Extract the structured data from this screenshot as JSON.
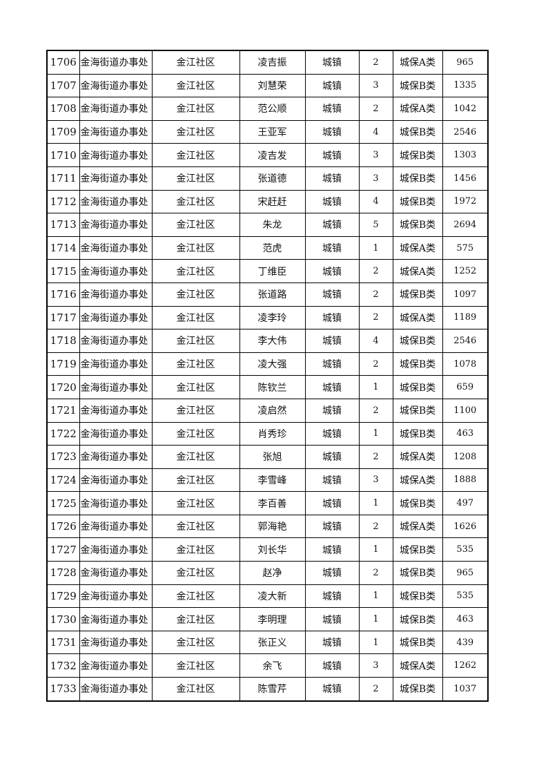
{
  "table": {
    "rows": [
      [
        "1706",
        "金海街道办事处",
        "金江社区",
        "凌吉振",
        "城镇",
        "2",
        "城保A类",
        "965"
      ],
      [
        "1707",
        "金海街道办事处",
        "金江社区",
        "刘慧荣",
        "城镇",
        "3",
        "城保B类",
        "1335"
      ],
      [
        "1708",
        "金海街道办事处",
        "金江社区",
        "范公顺",
        "城镇",
        "2",
        "城保A类",
        "1042"
      ],
      [
        "1709",
        "金海街道办事处",
        "金江社区",
        "王亚军",
        "城镇",
        "4",
        "城保B类",
        "2546"
      ],
      [
        "1710",
        "金海街道办事处",
        "金江社区",
        "凌吉发",
        "城镇",
        "3",
        "城保B类",
        "1303"
      ],
      [
        "1711",
        "金海街道办事处",
        "金江社区",
        "张道德",
        "城镇",
        "3",
        "城保B类",
        "1456"
      ],
      [
        "1712",
        "金海街道办事处",
        "金江社区",
        "宋赶赶",
        "城镇",
        "4",
        "城保B类",
        "1972"
      ],
      [
        "1713",
        "金海街道办事处",
        "金江社区",
        "朱龙",
        "城镇",
        "5",
        "城保B类",
        "2694"
      ],
      [
        "1714",
        "金海街道办事处",
        "金江社区",
        "范虎",
        "城镇",
        "1",
        "城保A类",
        "575"
      ],
      [
        "1715",
        "金海街道办事处",
        "金江社区",
        "丁维臣",
        "城镇",
        "2",
        "城保A类",
        "1252"
      ],
      [
        "1716",
        "金海街道办事处",
        "金江社区",
        "张道路",
        "城镇",
        "2",
        "城保B类",
        "1097"
      ],
      [
        "1717",
        "金海街道办事处",
        "金江社区",
        "凌李玲",
        "城镇",
        "2",
        "城保A类",
        "1189"
      ],
      [
        "1718",
        "金海街道办事处",
        "金江社区",
        "李大伟",
        "城镇",
        "4",
        "城保B类",
        "2546"
      ],
      [
        "1719",
        "金海街道办事处",
        "金江社区",
        "凌大强",
        "城镇",
        "2",
        "城保B类",
        "1078"
      ],
      [
        "1720",
        "金海街道办事处",
        "金江社区",
        "陈钦兰",
        "城镇",
        "1",
        "城保B类",
        "659"
      ],
      [
        "1721",
        "金海街道办事处",
        "金江社区",
        "凌启然",
        "城镇",
        "2",
        "城保B类",
        "1100"
      ],
      [
        "1722",
        "金海街道办事处",
        "金江社区",
        "肖秀珍",
        "城镇",
        "1",
        "城保B类",
        "463"
      ],
      [
        "1723",
        "金海街道办事处",
        "金江社区",
        "张旭",
        "城镇",
        "2",
        "城保A类",
        "1208"
      ],
      [
        "1724",
        "金海街道办事处",
        "金江社区",
        "李雪峰",
        "城镇",
        "3",
        "城保A类",
        "1888"
      ],
      [
        "1725",
        "金海街道办事处",
        "金江社区",
        "李百善",
        "城镇",
        "1",
        "城保B类",
        "497"
      ],
      [
        "1726",
        "金海街道办事处",
        "金江社区",
        "郭海艳",
        "城镇",
        "2",
        "城保A类",
        "1626"
      ],
      [
        "1727",
        "金海街道办事处",
        "金江社区",
        "刘长华",
        "城镇",
        "1",
        "城保B类",
        "535"
      ],
      [
        "1728",
        "金海街道办事处",
        "金江社区",
        "赵净",
        "城镇",
        "2",
        "城保B类",
        "965"
      ],
      [
        "1729",
        "金海街道办事处",
        "金江社区",
        "凌大新",
        "城镇",
        "1",
        "城保B类",
        "535"
      ],
      [
        "1730",
        "金海街道办事处",
        "金江社区",
        "李明理",
        "城镇",
        "1",
        "城保B类",
        "463"
      ],
      [
        "1731",
        "金海街道办事处",
        "金江社区",
        "张正义",
        "城镇",
        "1",
        "城保B类",
        "439"
      ],
      [
        "1732",
        "金海街道办事处",
        "金江社区",
        "余飞",
        "城镇",
        "3",
        "城保A类",
        "1262"
      ],
      [
        "1733",
        "金海街道办事处",
        "金江社区",
        "陈雪芹",
        "城镇",
        "2",
        "城保B类",
        "1037"
      ]
    ]
  }
}
